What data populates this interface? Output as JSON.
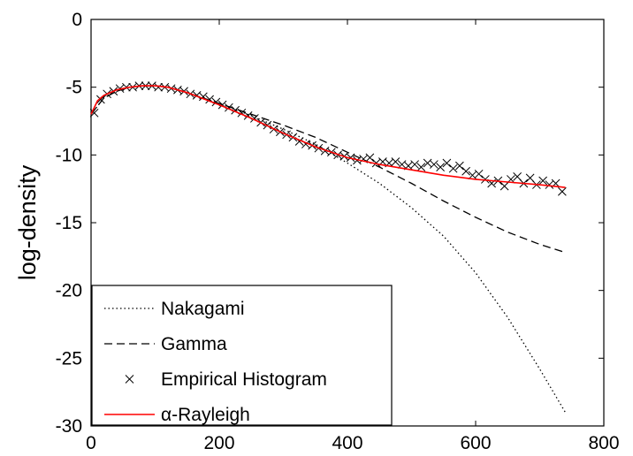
{
  "chart_data": {
    "type": "line",
    "title": "",
    "xlabel": "",
    "ylabel": "log-density",
    "xlim": [
      0,
      800
    ],
    "ylim": [
      -30,
      0
    ],
    "xticks": [
      0,
      200,
      400,
      600,
      800
    ],
    "yticks": [
      0,
      -5,
      -10,
      -15,
      -20,
      -25,
      -30
    ],
    "grid": false,
    "legend_position": "bottom-left",
    "series": [
      {
        "name": "Nakagami",
        "style": "dotted",
        "color": "#000000",
        "x": [
          0,
          20,
          40,
          60,
          80,
          100,
          120,
          150,
          200,
          250,
          300,
          350,
          400,
          450,
          500,
          550,
          600,
          650,
          700,
          740
        ],
        "y": [
          -7.0,
          -5.8,
          -5.3,
          -5.0,
          -4.9,
          -4.9,
          -5.0,
          -5.4,
          -6.2,
          -7.1,
          -8.1,
          -9.2,
          -10.6,
          -12.1,
          -13.9,
          -16.0,
          -18.7,
          -22.0,
          -25.8,
          -29.0
        ]
      },
      {
        "name": "Gamma",
        "style": "dashed",
        "color": "#000000",
        "x": [
          0,
          20,
          40,
          60,
          80,
          100,
          120,
          150,
          200,
          250,
          300,
          350,
          400,
          450,
          500,
          550,
          600,
          650,
          700,
          740
        ],
        "y": [
          -7.0,
          -5.8,
          -5.3,
          -5.0,
          -4.9,
          -4.9,
          -5.0,
          -5.4,
          -6.2,
          -7.0,
          -7.8,
          -8.7,
          -9.8,
          -10.9,
          -12.1,
          -13.4,
          -14.6,
          -15.7,
          -16.6,
          -17.2
        ]
      },
      {
        "name": "Empirical Histogram",
        "style": "x-markers",
        "color": "#000000",
        "x": [
          5,
          15,
          25,
          35,
          45,
          55,
          65,
          75,
          85,
          95,
          105,
          115,
          125,
          135,
          145,
          155,
          165,
          175,
          185,
          195,
          205,
          215,
          225,
          235,
          245,
          255,
          265,
          275,
          285,
          295,
          305,
          315,
          325,
          335,
          345,
          355,
          365,
          375,
          385,
          395,
          405,
          415,
          425,
          435,
          445,
          455,
          465,
          475,
          485,
          495,
          505,
          515,
          525,
          535,
          545,
          555,
          565,
          575,
          585,
          595,
          605,
          615,
          625,
          635,
          645,
          655,
          665,
          675,
          685,
          695,
          705,
          715,
          725,
          735
        ],
        "y": [
          -6.9,
          -5.9,
          -5.5,
          -5.3,
          -5.1,
          -5.0,
          -5.0,
          -4.9,
          -4.9,
          -4.9,
          -5.0,
          -5.0,
          -5.1,
          -5.2,
          -5.3,
          -5.5,
          -5.6,
          -5.7,
          -5.9,
          -6.1,
          -6.3,
          -6.5,
          -6.7,
          -6.9,
          -7.1,
          -7.3,
          -7.6,
          -7.8,
          -8.1,
          -8.3,
          -8.5,
          -8.7,
          -9.0,
          -9.2,
          -9.3,
          -9.5,
          -9.7,
          -9.8,
          -10.0,
          -10.1,
          -10.2,
          -10.4,
          -10.3,
          -10.2,
          -10.6,
          -10.5,
          -10.6,
          -10.5,
          -10.7,
          -10.8,
          -10.7,
          -10.9,
          -10.6,
          -10.7,
          -10.9,
          -10.6,
          -11.0,
          -10.8,
          -11.2,
          -11.5,
          -11.4,
          -11.8,
          -12.1,
          -11.9,
          -12.3,
          -11.8,
          -11.6,
          -12.1,
          -11.7,
          -12.2,
          -11.9,
          -12.2,
          -12.1,
          -12.7
        ]
      },
      {
        "name": "α-Rayleigh",
        "style": "solid",
        "color": "#ff0000",
        "x": [
          0,
          10,
          20,
          40,
          60,
          80,
          100,
          120,
          150,
          200,
          250,
          300,
          350,
          400,
          450,
          500,
          550,
          600,
          650,
          700,
          740
        ],
        "y": [
          -7.0,
          -6.0,
          -5.6,
          -5.2,
          -5.0,
          -4.9,
          -4.9,
          -5.0,
          -5.4,
          -6.3,
          -7.3,
          -8.4,
          -9.4,
          -10.2,
          -10.7,
          -11.1,
          -11.5,
          -11.8,
          -12.0,
          -12.2,
          -12.4
        ]
      }
    ]
  }
}
